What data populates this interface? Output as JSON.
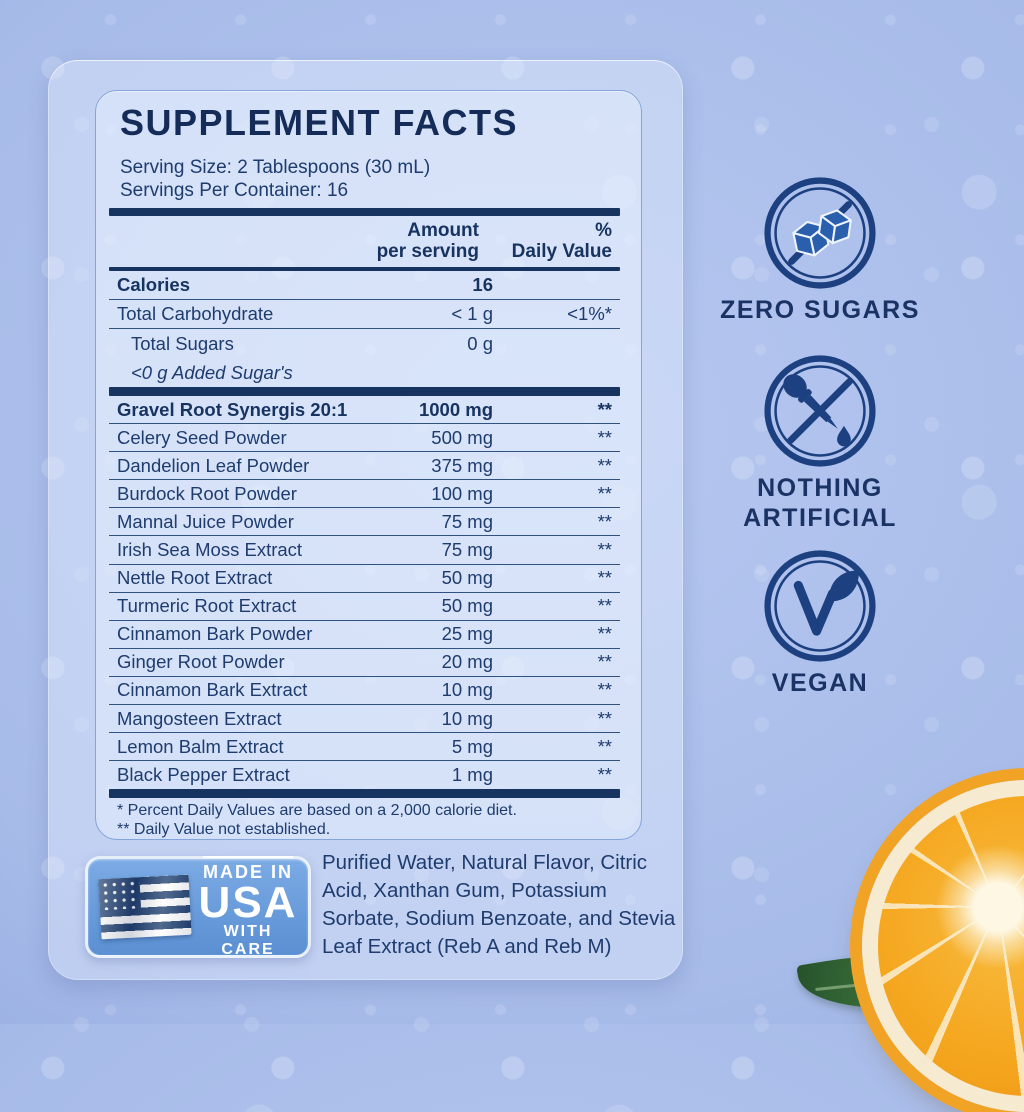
{
  "palette": {
    "navy": "#17335f",
    "text_navy": "#1e3c6e",
    "ring_blue": "#1c4080",
    "cube_blue": "#2a5fae",
    "panel_border": "#84a4da",
    "usa_badge_blue": "#5a8fd2",
    "background_blue": "#a7bbe9",
    "orange_peel": "#f1a326",
    "orange_pith": "#f6ead0",
    "orange_pulp": "#f5a71f",
    "leaf_green": "#2c5c30"
  },
  "supplement_facts": {
    "title": "SUPPLEMENT FACTS",
    "serving_size": "Serving Size: 2 Tablespoons (30 mL)",
    "servings_per_container": "Servings Per Container: 16",
    "header": {
      "amount_line1": "Amount",
      "amount_line2": "per serving",
      "dv_line1": "%",
      "dv_line2": "Daily Value"
    },
    "nutrition_rows": [
      {
        "name": "Calories",
        "amount": "16",
        "dv": "",
        "style": "bold",
        "rule": true
      },
      {
        "name": "Total Carbohydrate",
        "amount": "< 1 g",
        "dv": "<1%*",
        "style": "",
        "rule": true
      },
      {
        "name": "Total Sugars",
        "amount": "0 g",
        "dv": "",
        "style": "indent",
        "rule": false
      },
      {
        "name": "<0 g Added Sugar's",
        "amount": "",
        "dv": "",
        "style": "indent italic",
        "rule": false
      }
    ],
    "supplement_rows": [
      {
        "name": "Gravel Root Synergis 20:1",
        "amount": "1000 mg",
        "dv": "**",
        "style": "bold"
      },
      {
        "name": "Celery Seed Powder",
        "amount": "500 mg",
        "dv": "**",
        "style": ""
      },
      {
        "name": "Dandelion Leaf Powder",
        "amount": "375 mg",
        "dv": "**",
        "style": ""
      },
      {
        "name": "Burdock Root Powder",
        "amount": "100 mg",
        "dv": "**",
        "style": ""
      },
      {
        "name": "Mannal Juice Powder",
        "amount": "75 mg",
        "dv": "**",
        "style": ""
      },
      {
        "name": "Irish Sea Moss Extract",
        "amount": "75 mg",
        "dv": "**",
        "style": ""
      },
      {
        "name": "Nettle Root Extract",
        "amount": "50 mg",
        "dv": "**",
        "style": ""
      },
      {
        "name": "Turmeric Root Extract",
        "amount": "50 mg",
        "dv": "**",
        "style": ""
      },
      {
        "name": "Cinnamon Bark Powder",
        "amount": "25 mg",
        "dv": "**",
        "style": ""
      },
      {
        "name": "Ginger Root Powder",
        "amount": "20 mg",
        "dv": "**",
        "style": ""
      },
      {
        "name": "Cinnamon Bark Extract",
        "amount": "10 mg",
        "dv": "**",
        "style": ""
      },
      {
        "name": "Mangosteen Extract",
        "amount": "10 mg",
        "dv": "**",
        "style": ""
      },
      {
        "name": "Lemon Balm Extract",
        "amount": "5 mg",
        "dv": "**",
        "style": ""
      },
      {
        "name": "Black Pepper Extract",
        "amount": "1 mg",
        "dv": "**",
        "style": ""
      }
    ],
    "footnote1": "* Percent Daily Values are based on a 2,000 calorie diet.",
    "footnote2": "** Daily Value not established."
  },
  "badges": [
    {
      "label": "ZERO SUGARS",
      "icon": "no-sugar-cubes-icon"
    },
    {
      "label": "NOTHING ARTIFICIAL",
      "icon": "no-dropper-icon"
    },
    {
      "label": "VEGAN",
      "icon": "vegan-leaf-icon"
    }
  ],
  "usa_badge": {
    "line1": "MADE IN",
    "line2": "USA",
    "line3": "WITH CARE"
  },
  "other_ingredients": "Purified Water, Natural Flavor, Citric Acid, Xanthan Gum, Potassium Sorbate, Sodium Benzoate, and Stevia Leaf Extract (Reb A and Reb M)"
}
